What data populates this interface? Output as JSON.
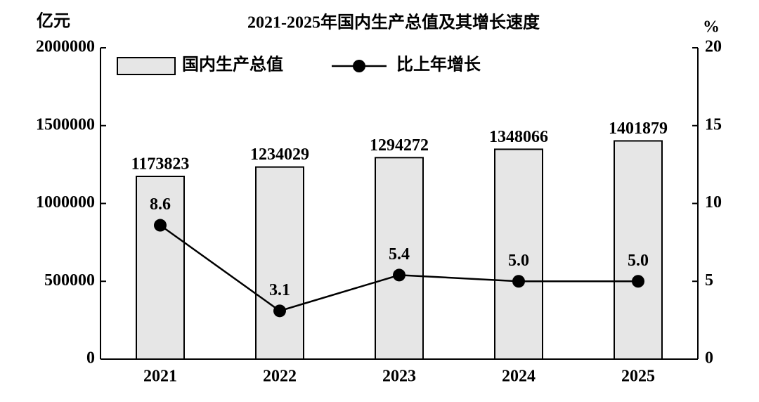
{
  "chart_data": {
    "type": "bar-line",
    "title": "2021-2025年国内生产总值及其增长速度",
    "ylabel": "亿元",
    "y2label": "%",
    "categories": [
      "2021",
      "2022",
      "2023",
      "2024",
      "2025"
    ],
    "series": [
      {
        "name": "国内生产总值",
        "type": "bar",
        "color": "#e6e6e6",
        "values": [
          1173823,
          1234029,
          1294272,
          1348066,
          1401879
        ]
      },
      {
        "name": "比上年增长",
        "type": "line",
        "axis": "y2",
        "color": "#000000",
        "values": [
          8.6,
          3.1,
          5.4,
          5.0,
          5.0
        ],
        "value_labels": [
          "8.6",
          "3.1",
          "5.4",
          "5.0",
          "5.0"
        ]
      }
    ],
    "ylim": [
      0,
      2000000
    ],
    "yticks": [
      0,
      500000,
      1000000,
      1500000,
      2000000
    ],
    "y2lim": [
      0,
      20
    ],
    "y2ticks": [
      0,
      5,
      10,
      15,
      20
    ],
    "legend": "upper left",
    "grid": false
  }
}
